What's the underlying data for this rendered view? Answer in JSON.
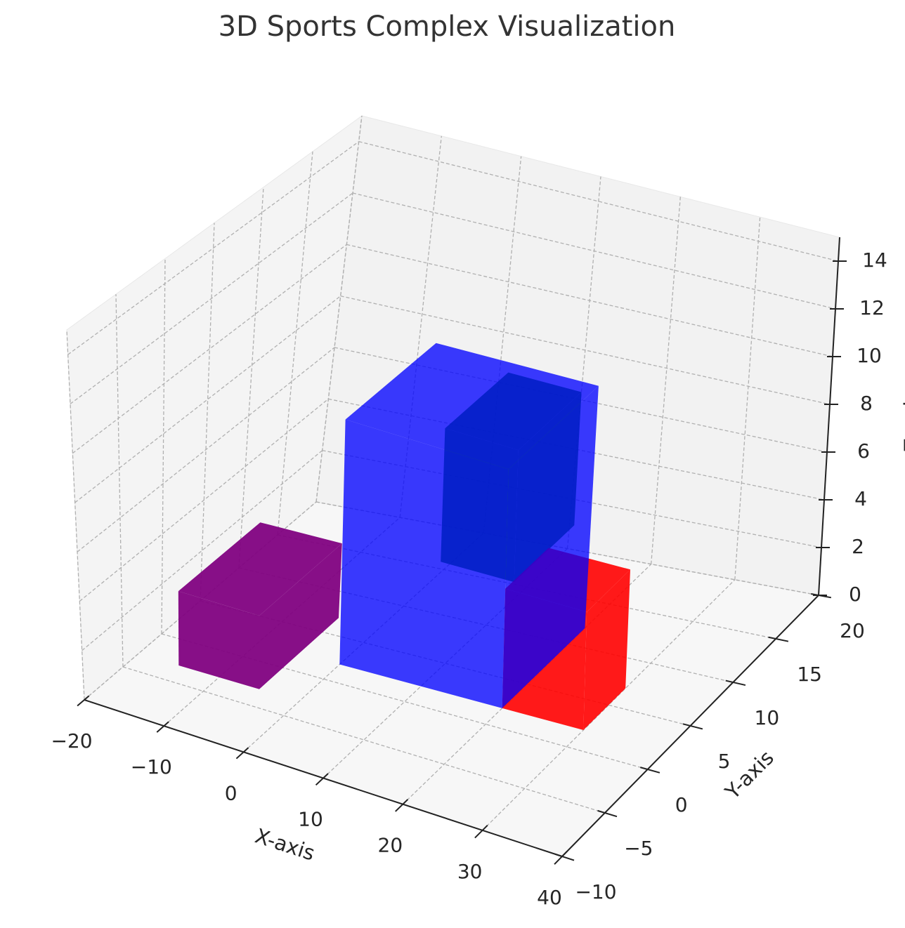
{
  "chart_data": {
    "type": "bar3d",
    "title": "3D Sports Complex Visualization",
    "xlabel": "X-axis",
    "ylabel": "Y-axis",
    "zlabel": "Z-axis",
    "xlim": [
      -20,
      40
    ],
    "ylim": [
      -10,
      20
    ],
    "zlim": [
      0,
      15
    ],
    "xticks": [
      {
        "value": -20,
        "label": "−20"
      },
      {
        "value": -10,
        "label": "−10"
      },
      0,
      10,
      20,
      30,
      40
    ],
    "yticks": [
      {
        "value": -10,
        "label": "−10"
      },
      {
        "value": -5,
        "label": "−5"
      },
      0,
      5,
      10,
      15,
      20
    ],
    "zticks": [
      0,
      2,
      4,
      6,
      8,
      10,
      12,
      14
    ],
    "grid": true,
    "series": [
      {
        "color": "#800080",
        "alpha": 0.94,
        "x": -15,
        "y": -3,
        "z": 0,
        "dx": 10,
        "dy": 10,
        "dz": 3
      },
      {
        "color": "#008000",
        "alpha": 0.85,
        "x": 10,
        "y": 4,
        "z": 4.5,
        "dx": 9,
        "dy": 7,
        "dz": 5.5
      },
      {
        "color": "#ff0000",
        "alpha": 0.9,
        "x": 20,
        "y": 2,
        "z": 0,
        "dx": 10,
        "dy": 5,
        "dz": 5
      },
      {
        "color": "#0000ff",
        "alpha": 0.77,
        "x": 0,
        "y": 2,
        "z": 0,
        "dx": 20,
        "dy": 10,
        "dz": 10
      }
    ]
  }
}
